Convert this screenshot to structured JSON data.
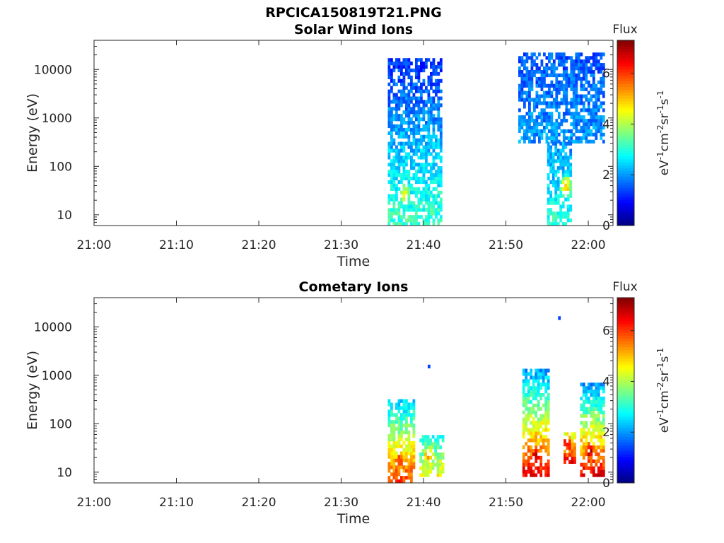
{
  "figure_title": "RPCICA150819T21.PNG",
  "chart_data": [
    {
      "type": "heatmap",
      "title": "Solar Wind Ions",
      "xlabel": "Time",
      "ylabel": "Energy (eV)",
      "yscale": "log",
      "ylim": [
        6,
        40000
      ],
      "xlim": [
        "21:00",
        "22:03"
      ],
      "x_ticks": [
        "21:00",
        "21:10",
        "21:20",
        "21:30",
        "21:40",
        "21:50",
        "22:00"
      ],
      "y_ticks": [
        "10",
        "100",
        "1000",
        "10000"
      ],
      "colorbar": {
        "label": "Flux",
        "unit_label": "eV-1cm-2sr-1s-1",
        "range": [
          0,
          7.3
        ],
        "ticks": [
          "0",
          "2",
          "4",
          "6"
        ],
        "colormap": "jet"
      },
      "regions": [
        {
          "t_start": "21:35:40",
          "t_end": "21:41:50",
          "e_min": 6,
          "e_max": 16000,
          "flux_low_energy": 3.2,
          "flux_high_energy": 1.2,
          "peak": {
            "time": "21:37:30",
            "energy": 25,
            "flux": 4.2
          }
        },
        {
          "t_start": "21:51:30",
          "t_end": "22:01:30",
          "e_min": 300,
          "e_max": 20000,
          "flux_low_energy": 2.0,
          "flux_high_energy": 1.5
        },
        {
          "t_start": "21:55:00",
          "t_end": "21:57:40",
          "e_min": 6,
          "e_max": 300,
          "flux_low_energy": 3.0,
          "flux_high_energy": 2.0,
          "peak": {
            "time": "21:57:10",
            "energy": 35,
            "flux": 4.8
          }
        }
      ]
    },
    {
      "type": "heatmap",
      "title": "Cometary Ions",
      "xlabel": "Time",
      "ylabel": "Energy (eV)",
      "yscale": "log",
      "ylim": [
        6,
        40000
      ],
      "xlim": [
        "21:00",
        "22:03"
      ],
      "x_ticks": [
        "21:00",
        "21:10",
        "21:20",
        "21:30",
        "21:40",
        "21:50",
        "22:00"
      ],
      "y_ticks": [
        "10",
        "100",
        "1000",
        "10000"
      ],
      "colorbar": {
        "label": "Flux",
        "unit_label": "eV-1cm-2sr-1s-1",
        "range": [
          0,
          7.3
        ],
        "ticks": [
          "0",
          "2",
          "4",
          "6"
        ],
        "colormap": "jet"
      },
      "regions": [
        {
          "t_start": "21:35:40",
          "t_end": "21:38:40",
          "e_min": 6,
          "e_max": 300,
          "flux_low_energy": 6.0,
          "flux_high_energy": 2.3,
          "peak": {
            "time": "21:37:00",
            "energy": 15,
            "flux": 6.3
          }
        },
        {
          "t_start": "21:39:30",
          "t_end": "21:42:00",
          "e_min": 8,
          "e_max": 50,
          "flux_low_energy": 4.5,
          "flux_high_energy": 3.0,
          "peak": {
            "time": "21:40:30",
            "energy": 20,
            "flux": 5.2
          }
        },
        {
          "t_start": "21:52:00",
          "t_end": "21:55:00",
          "e_min": 8,
          "e_max": 1200,
          "flux_low_energy": 6.5,
          "flux_high_energy": 2.0,
          "peak": {
            "time": "21:53:30",
            "energy": 20,
            "flux": 6.8
          }
        },
        {
          "t_start": "21:57:00",
          "t_end": "21:58:00",
          "e_min": 15,
          "e_max": 60,
          "flux_low_energy": 6.5,
          "flux_high_energy": 4.0,
          "peak": {
            "time": "21:57:20",
            "energy": 35,
            "flux": 6.5
          }
        },
        {
          "t_start": "21:59:00",
          "t_end": "22:01:30",
          "e_min": 8,
          "e_max": 600,
          "flux_low_energy": 6.5,
          "flux_high_energy": 2.0,
          "peak": {
            "time": "22:00:00",
            "energy": 25,
            "flux": 6.8
          }
        },
        {
          "t_start": "21:40:30",
          "t_end": "21:40:30",
          "e_min": 1400,
          "e_max": 1600,
          "flux_low_energy": 1.2,
          "flux_high_energy": 1.2
        },
        {
          "t_start": "21:56:20",
          "t_end": "21:56:20",
          "e_min": 14000,
          "e_max": 16000,
          "flux_low_energy": 1.2,
          "flux_high_energy": 1.2
        }
      ]
    }
  ]
}
